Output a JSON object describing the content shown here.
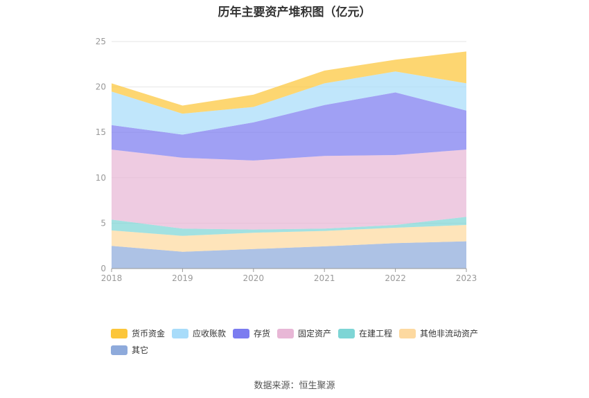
{
  "title": "历年主要资产堆积图（亿元）",
  "source": "数据来源：恒生聚源",
  "chart_data": {
    "type": "area",
    "stacked": true,
    "title": "历年主要资产堆积图（亿元）",
    "x": [
      "2018",
      "2019",
      "2020",
      "2021",
      "2022",
      "2023"
    ],
    "ylim": [
      0,
      25
    ],
    "yticks": [
      0,
      5,
      10,
      15,
      20,
      25
    ],
    "grid": true,
    "legend_position": "bottom",
    "series": [
      {
        "name": "其它",
        "color": "#8eaadb",
        "values": [
          2.5,
          1.85,
          2.15,
          2.45,
          2.8,
          3.0
        ]
      },
      {
        "name": "其他非流动资产",
        "color": "#fdd9a0",
        "values": [
          1.7,
          1.75,
          1.8,
          1.7,
          1.7,
          1.8
        ]
      },
      {
        "name": "在建工程",
        "color": "#7ed5d5",
        "values": [
          1.2,
          0.8,
          0.35,
          0.25,
          0.3,
          0.9
        ]
      },
      {
        "name": "固定资产",
        "color": "#e8b7d6",
        "values": [
          7.7,
          7.8,
          7.6,
          8.0,
          7.7,
          7.4
        ]
      },
      {
        "name": "存货",
        "color": "#7b7cf0",
        "values": [
          2.7,
          2.55,
          4.2,
          5.6,
          6.9,
          4.3
        ]
      },
      {
        "name": "应收账款",
        "color": "#a8dcfa",
        "values": [
          3.7,
          2.3,
          1.7,
          2.4,
          2.3,
          3.0
        ]
      },
      {
        "name": "货币资金",
        "color": "#fcc63a",
        "values": [
          0.9,
          0.9,
          1.35,
          1.4,
          1.3,
          3.5
        ]
      }
    ]
  }
}
